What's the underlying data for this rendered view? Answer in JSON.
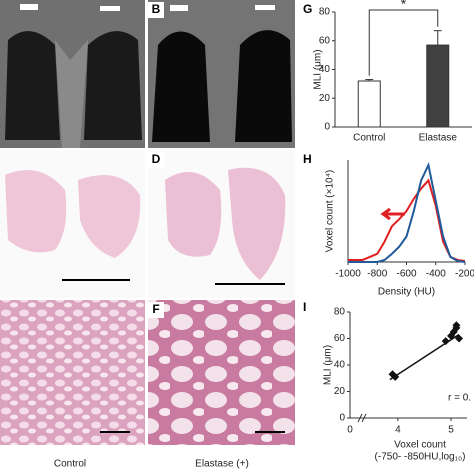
{
  "panel_labels": [
    "B",
    "D",
    "F",
    "G",
    "H",
    "I"
  ],
  "column_labels": [
    "Control",
    "Elastase (+)"
  ],
  "chart_data": [
    {
      "type": "bar",
      "categories": [
        "Control",
        "Elastase"
      ],
      "values": [
        32,
        57
      ],
      "errors": [
        1,
        10
      ],
      "colors": [
        "#ffffff",
        "#404040"
      ],
      "ylabel": "MLI (μm)",
      "ylim": [
        0,
        80
      ],
      "yticks": [
        0,
        20,
        40,
        60,
        80
      ],
      "annotation": "*"
    },
    {
      "type": "line",
      "x": [
        -1000,
        -900,
        -800,
        -750,
        -700,
        -650,
        -600,
        -550,
        -500,
        -450,
        -400,
        -350,
        -300,
        -250,
        -200
      ],
      "series": [
        {
          "color": "#e02020",
          "values": [
            0.02,
            0.02,
            0.08,
            0.2,
            0.35,
            0.42,
            0.5,
            0.62,
            0.72,
            0.8,
            0.55,
            0.2,
            0.05,
            0.02,
            0.01
          ]
        },
        {
          "color": "#1f5a9a",
          "values": [
            0,
            0,
            0,
            0.02,
            0.08,
            0.15,
            0.25,
            0.5,
            0.8,
            0.95,
            0.6,
            0.25,
            0.05,
            0.01,
            0
          ]
        }
      ],
      "xlabel": "Density (HU)",
      "ylabel": "Voxel count (×10⁴)",
      "xlim": [
        -1000,
        -200
      ],
      "xticks": [
        -1000,
        -800,
        -600,
        -400,
        -200
      ],
      "ylim": [
        0,
        1
      ]
    },
    {
      "type": "scatter",
      "x": [
        3.9,
        3.95,
        4.9,
        5.0,
        5.05,
        5.1,
        5.1,
        5.15
      ],
      "values": [
        33,
        31,
        58,
        62,
        65,
        70,
        68,
        60
      ],
      "color": "#111111",
      "fit": {
        "x": [
          3.85,
          5.15
        ],
        "y": [
          29,
          63
        ]
      },
      "xlabel": [
        "Voxel count",
        "(-750- -850HU,log₁₀)"
      ],
      "ylabel": "MLI (μm)",
      "annotation": "r = 0.",
      "axis_break_label": "0",
      "xlim": [
        3.1,
        5.3
      ],
      "xticks": [
        4,
        5
      ],
      "ylim": [
        0,
        80
      ],
      "yticks": [
        0,
        20,
        40,
        60,
        80
      ]
    }
  ]
}
